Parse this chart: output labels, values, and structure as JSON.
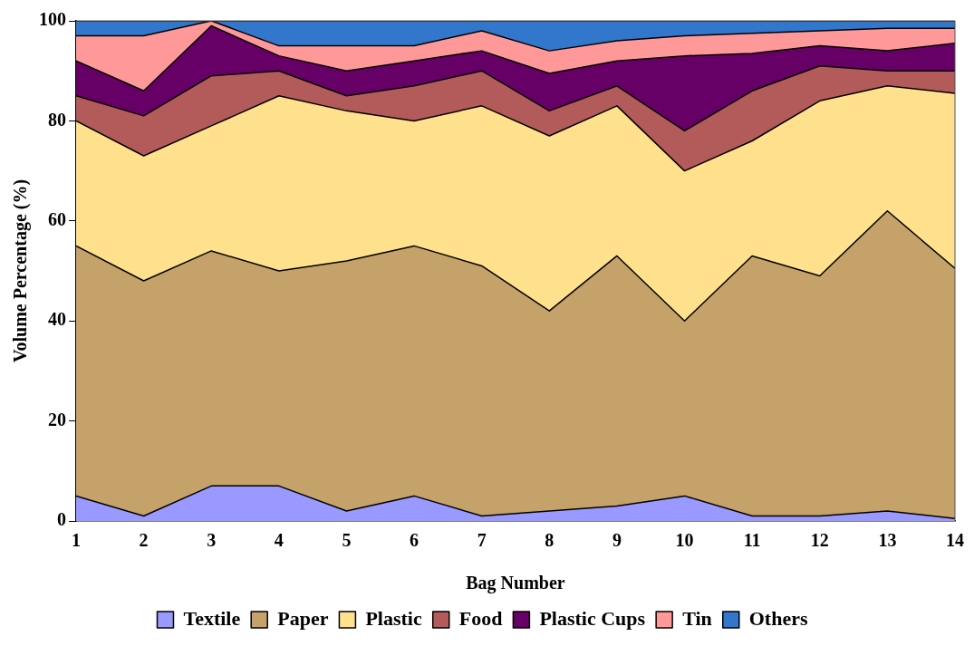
{
  "chart_data": {
    "type": "area",
    "stacked": true,
    "xlabel": "Bag Number",
    "ylabel": "Volume Percentage (%)",
    "x": [
      1,
      2,
      3,
      4,
      5,
      6,
      7,
      8,
      9,
      10,
      11,
      12,
      13,
      14
    ],
    "series": [
      {
        "name": "Textile",
        "color": "#9999ff",
        "values": [
          5,
          1,
          7,
          7,
          2,
          5,
          1,
          2,
          3,
          5,
          1,
          1,
          2,
          0.5
        ]
      },
      {
        "name": "Paper",
        "color": "#c4a26a",
        "values": [
          50,
          47,
          47,
          43,
          50,
          50,
          50,
          40,
          50,
          35,
          52,
          48,
          60,
          50
        ]
      },
      {
        "name": "Plastic",
        "color": "#ffe08c",
        "values": [
          25,
          25,
          25,
          35,
          30,
          25,
          32,
          35,
          30,
          30,
          23,
          35,
          25,
          35
        ]
      },
      {
        "name": "Food",
        "color": "#b35a5a",
        "values": [
          5,
          8,
          10,
          5,
          3,
          7,
          7,
          5,
          4,
          8,
          10,
          7,
          3,
          4.5
        ]
      },
      {
        "name": "Plastic Cups",
        "color": "#660066",
        "values": [
          7,
          5,
          10,
          3,
          5,
          5,
          4,
          7.5,
          5,
          15,
          7.5,
          4,
          4,
          5.5
        ]
      },
      {
        "name": "Tin",
        "color": "#ff9999",
        "values": [
          5,
          11,
          1,
          2,
          5,
          3,
          4,
          4.5,
          4,
          4,
          4,
          3,
          4.5,
          3
        ]
      },
      {
        "name": "Others",
        "color": "#3377cc",
        "values": [
          3,
          3,
          0,
          5,
          5,
          5,
          2,
          6,
          4,
          3,
          2.5,
          2,
          1.5,
          1.5
        ]
      }
    ],
    "xlim": [
      1,
      14
    ],
    "xticks": [
      1,
      2,
      3,
      4,
      5,
      6,
      7,
      8,
      9,
      10,
      11,
      12,
      13,
      14
    ],
    "ylim": [
      0,
      100
    ],
    "yticks": [
      0,
      20,
      40,
      60,
      80,
      100
    ],
    "grid": false,
    "legend": "bottom"
  }
}
